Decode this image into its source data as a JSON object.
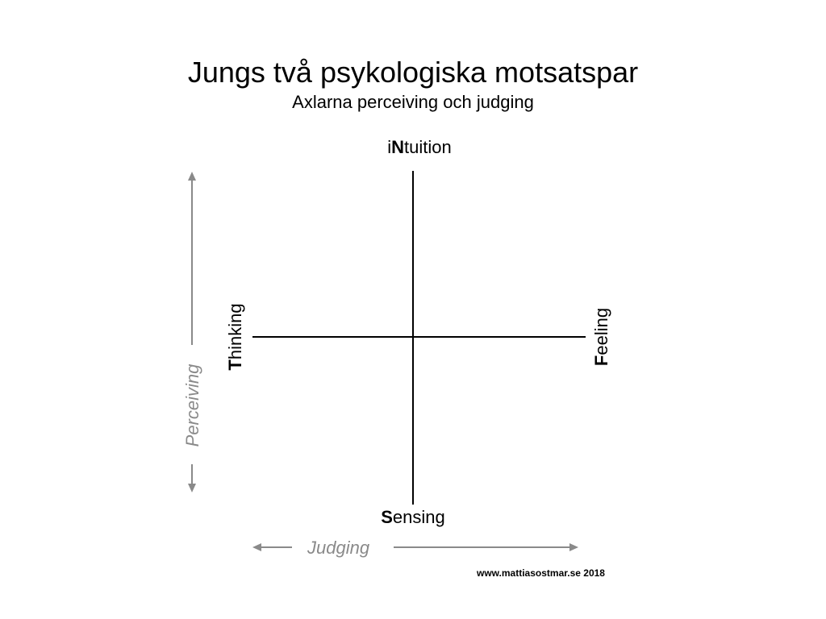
{
  "title": "Jungs två psykologiska motsatspar",
  "subtitle": "Axlarna perceiving och judging",
  "poles": {
    "top": {
      "initial_prefix": "i",
      "emphasis": "N",
      "rest": "tuition"
    },
    "bottom": {
      "emphasis": "S",
      "rest": "ensing"
    },
    "left": {
      "emphasis": "T",
      "rest": "hinking"
    },
    "right": {
      "emphasis": "F",
      "rest": "eeling"
    }
  },
  "axes": {
    "vertical_label": "Perceiving",
    "horizontal_label": "Judging"
  },
  "credit": "www.mattiasostmar.se 2018",
  "colors": {
    "axis_line": "#000000",
    "arrow": "#8a8a8a",
    "arrow_label": "#8a8a8a"
  }
}
